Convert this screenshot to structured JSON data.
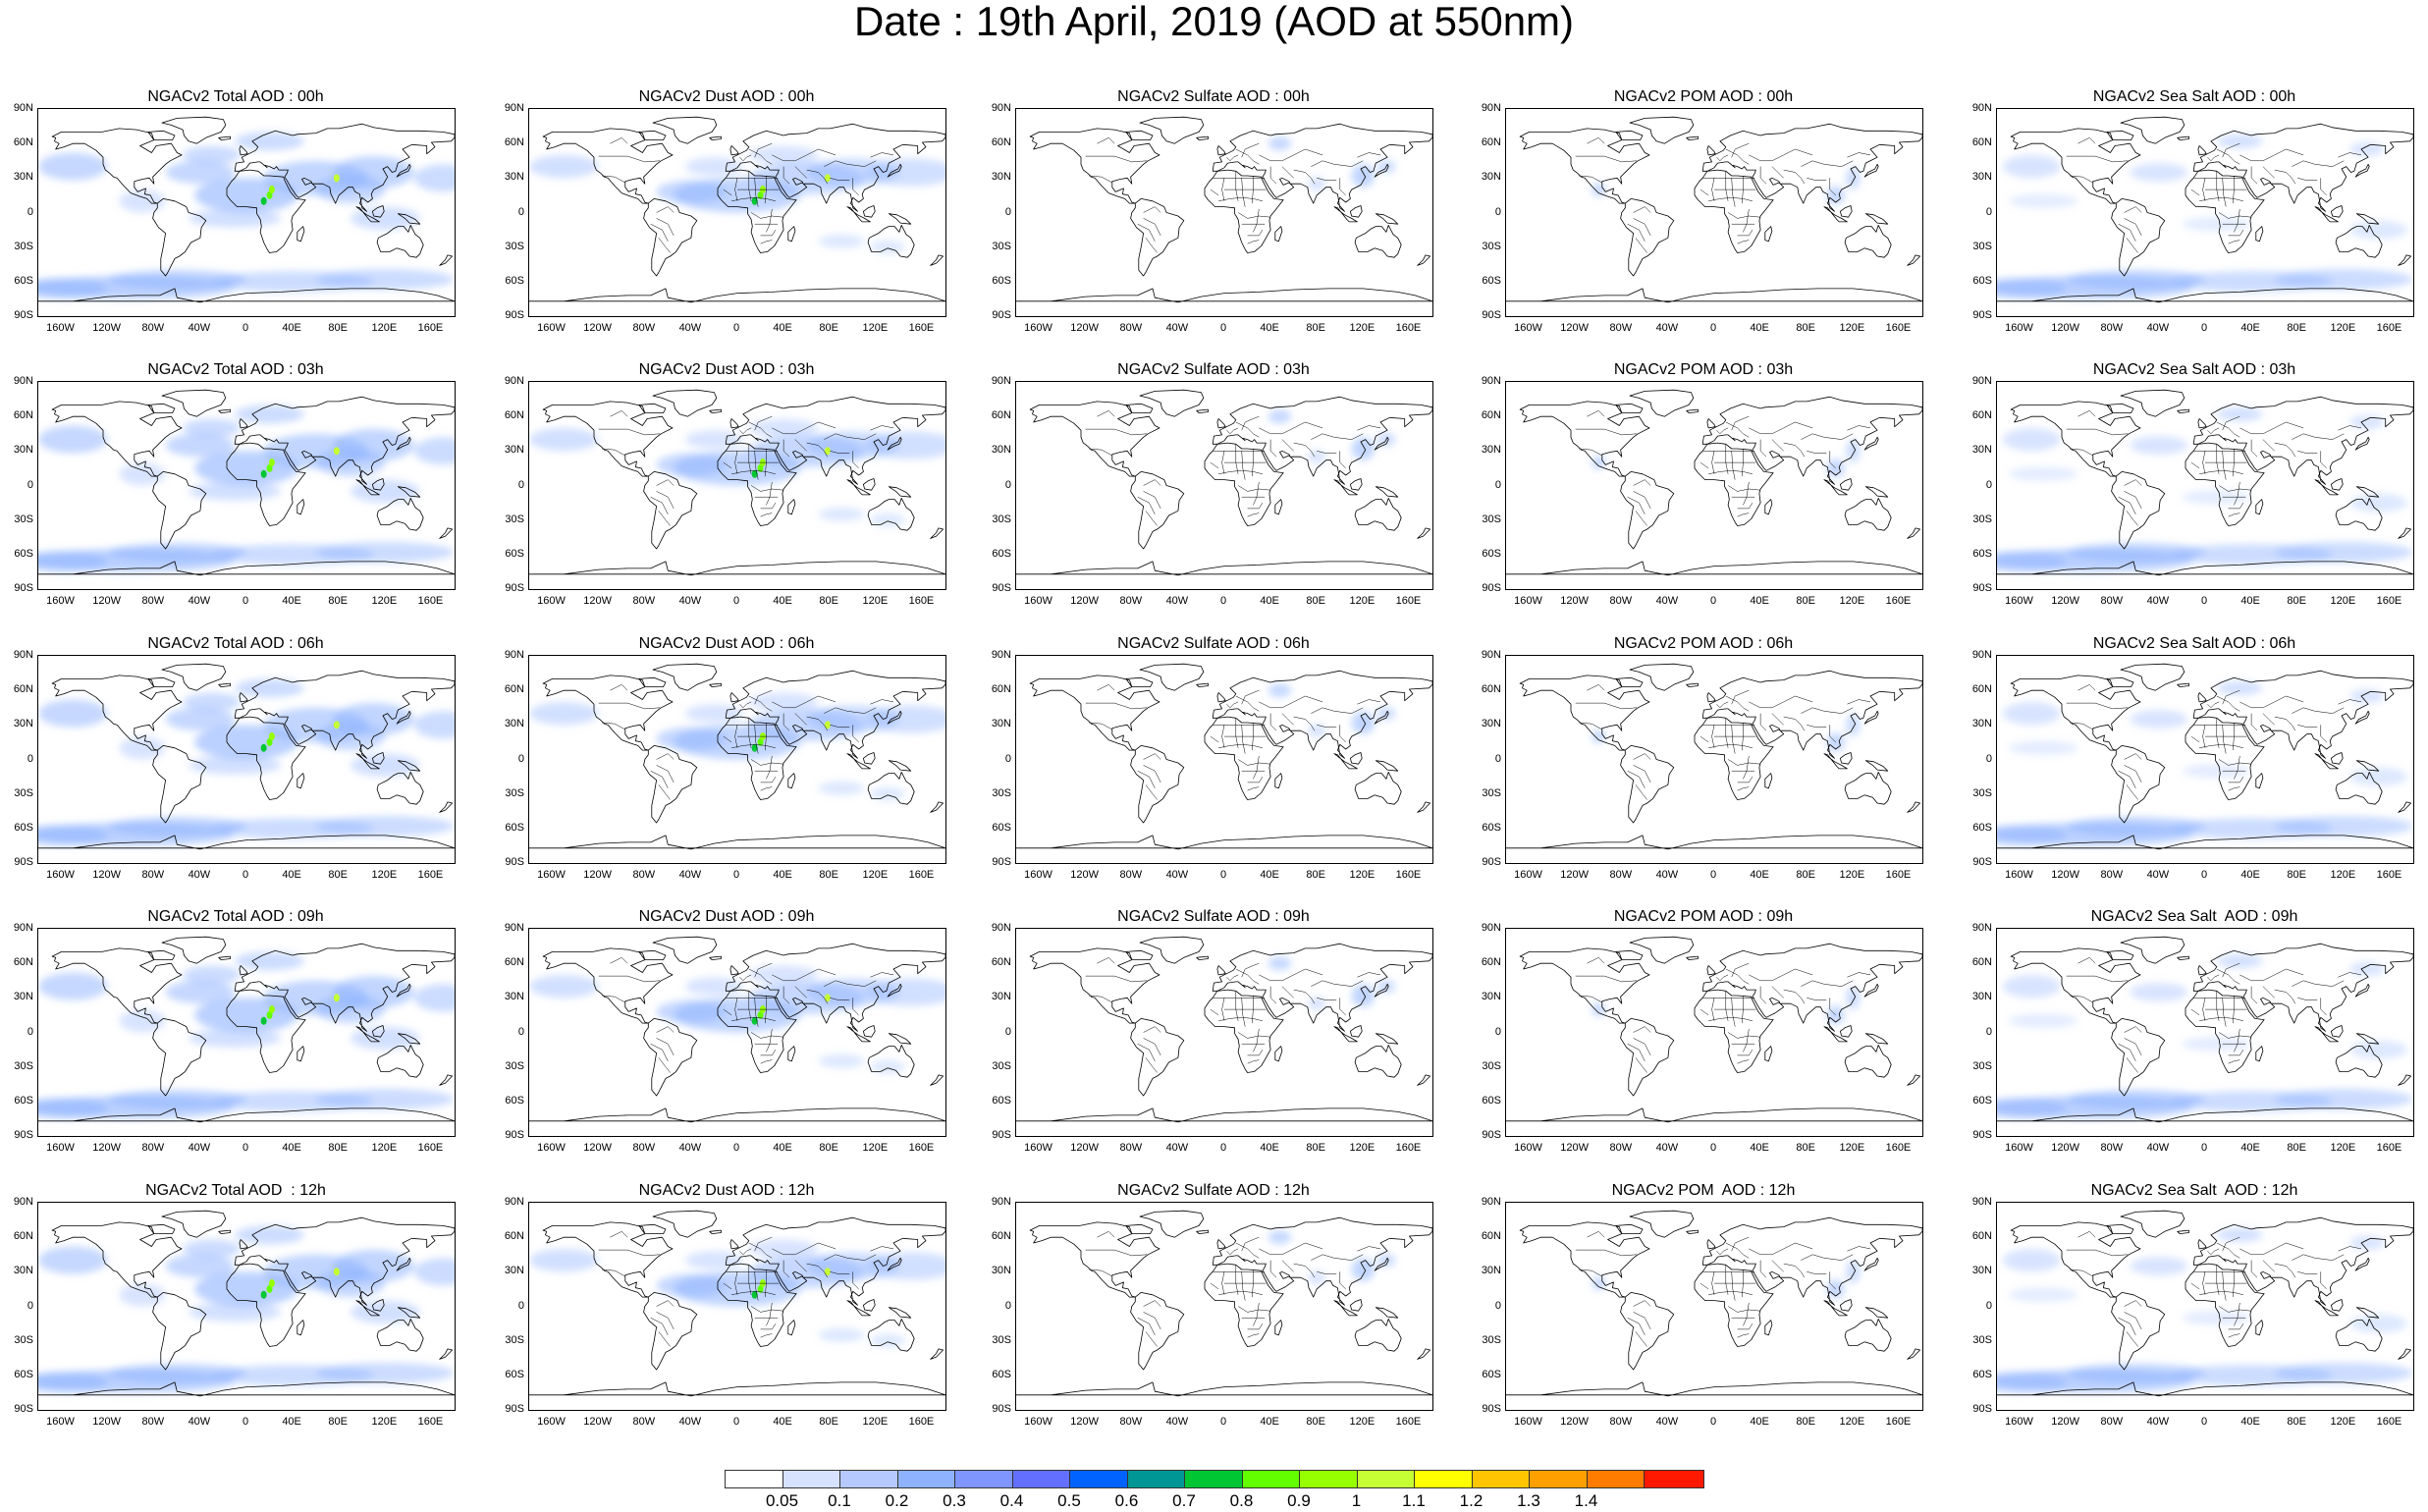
{
  "title": "Date : 19th April, 2019 (AOD at 550nm)",
  "panels": [
    [
      "NGACv2 Total AOD : 00h",
      "NGACv2 Dust AOD : 00h",
      "NGACv2 Sulfate AOD : 00h",
      "NGACv2 POM AOD : 00h",
      "NGACv2 Sea Salt AOD : 00h"
    ],
    [
      "NGACv2 Total AOD : 03h",
      "NGACv2 Dust AOD : 03h",
      "NGACv2 Sulfate AOD : 03h",
      "NGACv2 POM AOD : 03h",
      "NGACv2 Sea Salt AOD : 03h"
    ],
    [
      "NGACv2 Total AOD : 06h",
      "NGACv2 Dust AOD : 06h",
      "NGACv2 Sulfate AOD : 06h",
      "NGACv2 POM AOD : 06h",
      "NGACv2 Sea Salt AOD : 06h"
    ],
    [
      "NGACv2 Total AOD : 09h",
      "NGACv2 Dust AOD : 09h",
      "NGACv2 Sulfate AOD : 09h",
      "NGACv2 POM AOD : 09h",
      "NGACv2 Sea Salt  AOD : 09h"
    ],
    [
      "NGACv2 Total AOD  : 12h",
      "NGACv2 Dust AOD : 12h",
      "NGACv2 Sulfate AOD : 12h",
      "NGACv2 POM  AOD : 12h",
      "NGACv2 Sea Salt  AOD : 12h"
    ]
  ],
  "panel_types": [
    "total",
    "dust",
    "sulfate",
    "pom",
    "seasalt"
  ],
  "lat_labels": [
    "90N",
    "60N",
    "30N",
    "0",
    "30S",
    "60S",
    "90S"
  ],
  "lon_labels": [
    "160W",
    "120W",
    "80W",
    "40W",
    "0",
    "40E",
    "80E",
    "120E",
    "160E"
  ],
  "colorbar": {
    "colors": [
      "#ffffff",
      "#d6e2ff",
      "#b5c9ff",
      "#8eb2ff",
      "#7f96ff",
      "#6370ff",
      "#0063ff",
      "#009696",
      "#00c633",
      "#63ff00",
      "#96ff00",
      "#c6ff33",
      "#ffff00",
      "#ffc600",
      "#ffa000",
      "#ff7c00",
      "#ff1900"
    ],
    "labels": [
      "0.05",
      "0.1",
      "0.2",
      "0.3",
      "0.4",
      "0.5",
      "0.6",
      "0.7",
      "0.8",
      "0.9",
      "1",
      "1.1",
      "1.2",
      "1.3",
      "1.4"
    ]
  }
}
